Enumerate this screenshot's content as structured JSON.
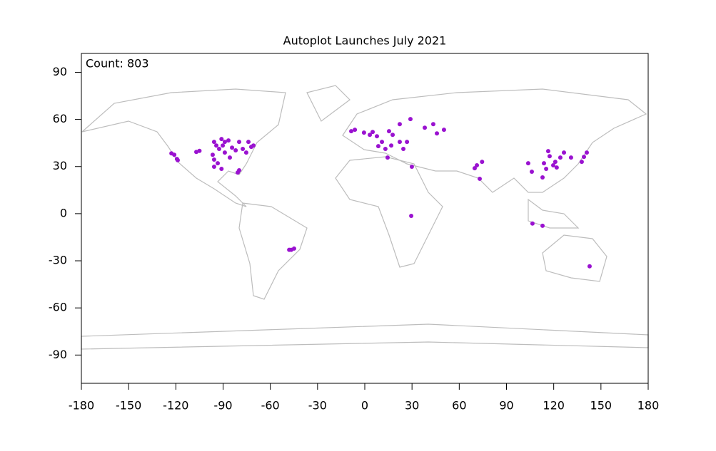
{
  "chart_data": {
    "type": "scatter",
    "title": "Autoplot Launches July 2021",
    "annotation": "Count: 803",
    "x": [
      -122.8,
      -121,
      -118.8,
      -119.3,
      -107,
      -105,
      -95.7,
      -94.3,
      -92.5,
      -96.6,
      -95.7,
      -95.7,
      -91,
      -93.4,
      -88.9,
      -90.2,
      -85.7,
      -84.3,
      -82,
      -79.8,
      -80.7,
      -77.5,
      -75.3,
      -72.1,
      -70.7,
      -73.9,
      -79.8,
      -86.6,
      -91,
      -88.9,
      -48,
      -44.9,
      -46.7,
      -8.6,
      -6.3,
      -0.5,
      3.2,
      5,
      7.7,
      10.9,
      13.1,
      15.4,
      17.7,
      14.5,
      22.2,
      24.5,
      29,
      38.1,
      43.5,
      45.8,
      50.3,
      22.2,
      26.8,
      16.8,
      8.6,
      29.9,
      29.5,
      71.2,
      73,
      69.8,
      74.5,
      116.5,
      117.4,
      113.8,
      115.2,
      112.9,
      119.7,
      121,
      121.9,
      106.1,
      103.8,
      126.5,
      131,
      139.2,
      141,
      137.8,
      106.5,
      112.9,
      142.8,
      124.2
    ],
    "y": [
      38.4,
      37.5,
      34,
      34.8,
      39.3,
      40,
      45.7,
      43.4,
      41.2,
      37.5,
      34.4,
      29.9,
      28.5,
      32.1,
      38.9,
      43.4,
      35.7,
      42,
      40.3,
      27.6,
      26.2,
      41.2,
      38.9,
      42.5,
      43.4,
      45.7,
      45.7,
      46.6,
      47.5,
      45.7,
      -23,
      -22.2,
      -23,
      52.5,
      53.4,
      51.6,
      50.2,
      52,
      49.3,
      45.7,
      41.2,
      52.5,
      50.2,
      35.7,
      45.7,
      41.2,
      60.2,
      54.7,
      57,
      51.1,
      53.4,
      57,
      45.7,
      43.4,
      43,
      29.9,
      -1.4,
      30.8,
      22.2,
      28.9,
      33,
      39.8,
      36.6,
      32.1,
      28.5,
      23.1,
      30.8,
      33,
      29.4,
      26.7,
      32.1,
      38.9,
      35.7,
      36.2,
      38.9,
      33,
      -6.3,
      -7.7,
      -33.5,
      35.7
    ],
    "color": "#9a12d0",
    "xlim": [
      -180,
      180
    ],
    "ylim": [
      -108,
      102
    ],
    "xticks": [
      -180,
      -150,
      -120,
      -90,
      -60,
      -30,
      0,
      30,
      60,
      90,
      120,
      150,
      180
    ],
    "yticks": [
      -90,
      -60,
      -30,
      0,
      30,
      60,
      90
    ]
  }
}
